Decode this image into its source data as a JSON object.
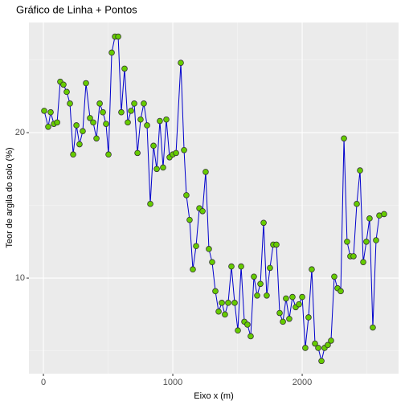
{
  "chart_data": {
    "type": "line",
    "title": "Gráfico de Linha + Pontos",
    "x_label": "Eixo x (m)",
    "y_label": "Teor de argila do solo (%)",
    "x": [
      6,
      37,
      56,
      81,
      106,
      130,
      155,
      180,
      205,
      230,
      255,
      279,
      304,
      329,
      360,
      385,
      410,
      435,
      460,
      484,
      503,
      528,
      553,
      578,
      602,
      627,
      652,
      677,
      702,
      727,
      751,
      776,
      801,
      826,
      851,
      876,
      900,
      925,
      950,
      975,
      1000,
      1025,
      1062,
      1087,
      1105,
      1130,
      1155,
      1180,
      1205,
      1230,
      1254,
      1279,
      1304,
      1329,
      1354,
      1379,
      1403,
      1428,
      1453,
      1478,
      1503,
      1528,
      1553,
      1577,
      1602,
      1627,
      1652,
      1677,
      1702,
      1726,
      1751,
      1776,
      1801,
      1826,
      1851,
      1875,
      1900,
      1925,
      1950,
      1975,
      2000,
      2024,
      2049,
      2074,
      2099,
      2124,
      2149,
      2173,
      2198,
      2223,
      2248,
      2273,
      2298,
      2323,
      2347,
      2372,
      2397,
      2422,
      2447,
      2472,
      2496,
      2521,
      2546,
      2571,
      2596,
      2633
    ],
    "series": [
      {
        "color": "#0000cc",
        "marker_color": "#66cc00",
        "values": [
          21.5,
          20.4,
          21.4,
          20.6,
          20.7,
          23.5,
          23.3,
          22.8,
          22.0,
          18.5,
          20.5,
          19.2,
          20.1,
          23.4,
          21.0,
          20.7,
          19.6,
          22.0,
          21.4,
          20.6,
          18.5,
          25.5,
          26.6,
          26.6,
          21.4,
          24.4,
          20.7,
          21.5,
          22.0,
          18.6,
          20.9,
          22.0,
          20.5,
          15.1,
          19.1,
          17.5,
          20.8,
          17.6,
          20.9,
          18.3,
          18.5,
          18.6,
          24.8,
          18.8,
          15.7,
          14.0,
          10.6,
          12.2,
          14.8,
          14.6,
          17.3,
          12.0,
          11.1,
          9.1,
          7.7,
          8.3,
          7.5,
          8.3,
          10.8,
          8.3,
          6.4,
          10.8,
          7.0,
          6.8,
          6.0,
          10.1,
          8.8,
          9.6,
          13.8,
          8.8,
          10.7,
          12.3,
          12.3,
          7.6,
          7.0,
          8.6,
          7.2,
          8.7,
          8.0,
          8.2,
          8.7,
          5.2,
          7.3,
          10.6,
          5.5,
          5.2,
          4.3,
          5.2,
          5.4,
          5.7,
          10.1,
          9.3,
          9.1,
          19.6,
          12.5,
          11.5,
          11.5,
          15.1,
          17.4,
          11.1,
          12.5,
          14.1,
          6.6,
          12.6,
          14.3,
          14.4
        ]
      }
    ],
    "xlim": [
      -112,
      2745
    ],
    "ylim": [
      3.43,
      27.57
    ],
    "xticks": [
      0,
      1000,
      2000
    ],
    "yticks": [
      10,
      20
    ],
    "grid": true
  }
}
